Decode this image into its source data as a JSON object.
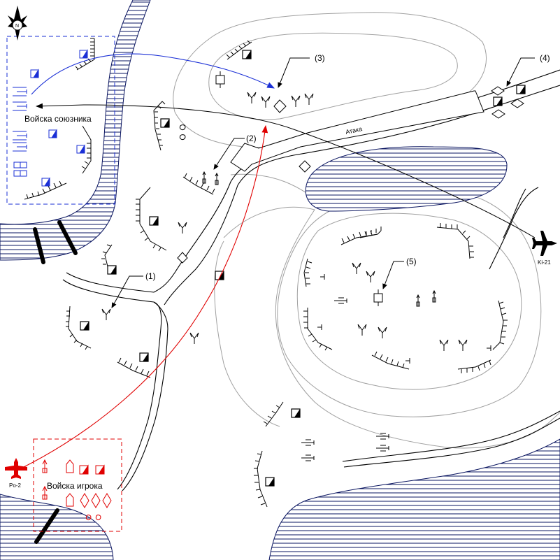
{
  "map": {
    "labels": {
      "allies": "Войска союзника",
      "player": "Войска игрока",
      "attack": "Атака",
      "p1": "(1)",
      "p2": "(2)",
      "p3": "(3)",
      "p4": "(4)",
      "p5": "(5)",
      "compass": "N"
    },
    "aircraft": {
      "enemy": {
        "name": "Ki-21",
        "color": "#000000"
      },
      "player": {
        "name": "Po-2",
        "color": "#e00000"
      }
    },
    "colors": {
      "allies": "#1a2fd6",
      "player": "#e00000",
      "terrain": "#9a9a9a",
      "water_hatch": "#0a1560",
      "ink": "#000000"
    }
  }
}
